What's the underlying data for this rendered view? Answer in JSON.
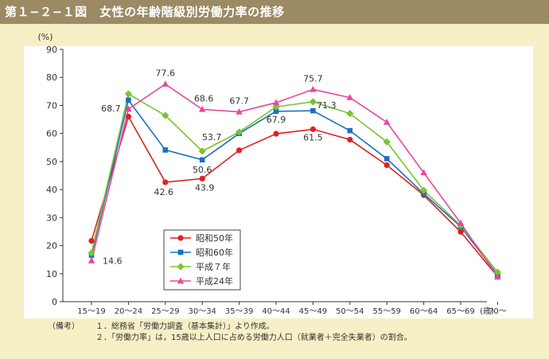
{
  "header": {
    "title": "第１−２−１図　女性の年齢階級別労働力率の推移"
  },
  "colors": {
    "title_bg": "#9b8a63",
    "page_bg": "#f7f0c6"
  },
  "chart_data": {
    "type": "line",
    "ylabel": "(%)",
    "xlabel": "(歳)",
    "ylim": [
      0,
      90
    ],
    "yticks": [
      0,
      10,
      20,
      30,
      40,
      50,
      60,
      70,
      80,
      90
    ],
    "categories": [
      "15～19",
      "20～24",
      "25～29",
      "30～34",
      "35～39",
      "40～44",
      "45～49",
      "50～54",
      "55～59",
      "60～64",
      "65～69",
      "70～"
    ],
    "legend_position": "lower-left",
    "grid": false,
    "series": [
      {
        "name": "昭和50年",
        "color": "#e02020",
        "marker": "circle",
        "values": [
          21.7,
          66.0,
          42.6,
          43.9,
          54.0,
          59.9,
          61.5,
          57.8,
          48.7,
          38.0,
          24.9,
          8.9
        ]
      },
      {
        "name": "昭和60年",
        "color": "#1a6fc4",
        "marker": "square",
        "values": [
          16.6,
          71.9,
          54.1,
          50.6,
          60.0,
          67.9,
          68.1,
          61.0,
          51.0,
          38.5,
          26.8,
          9.5
        ]
      },
      {
        "name": "平成７年",
        "color": "#7ac52e",
        "marker": "diamond",
        "values": [
          17.4,
          74.1,
          66.4,
          53.7,
          60.5,
          69.5,
          71.3,
          67.1,
          57.0,
          39.7,
          27.2,
          10.5
        ]
      },
      {
        "name": "平成24年",
        "color": "#e8479c",
        "marker": "triangle",
        "values": [
          14.6,
          68.7,
          77.6,
          68.6,
          67.7,
          71.0,
          75.7,
          72.8,
          64.0,
          46.0,
          28.0,
          8.8
        ]
      }
    ],
    "annotations": [
      {
        "text": "14.6",
        "series": 3,
        "index": 0
      },
      {
        "text": "68.7",
        "series": 3,
        "index": 1
      },
      {
        "text": "77.6",
        "series": 3,
        "index": 2
      },
      {
        "text": "68.6",
        "series": 3,
        "index": 3
      },
      {
        "text": "67.7",
        "series": 3,
        "index": 4
      },
      {
        "text": "75.7",
        "series": 3,
        "index": 6
      },
      {
        "text": "71.3",
        "series": 2,
        "index": 6
      },
      {
        "text": "53.7",
        "series": 2,
        "index": 3
      },
      {
        "text": "67.9",
        "series": 1,
        "index": 5
      },
      {
        "text": "50.6",
        "series": 1,
        "index": 3
      },
      {
        "text": "61.5",
        "series": 0,
        "index": 6
      },
      {
        "text": "42.6",
        "series": 0,
        "index": 2
      },
      {
        "text": "43.9",
        "series": 0,
        "index": 3
      }
    ]
  },
  "notes": {
    "label": "（備考）",
    "lines": [
      "１．総務省「労働力調査（基本集計）」より作成。",
      "２．「労働力率」は，15歳以上人口に占める労働力人口（就業者＋完全失業者）の割合。"
    ]
  }
}
